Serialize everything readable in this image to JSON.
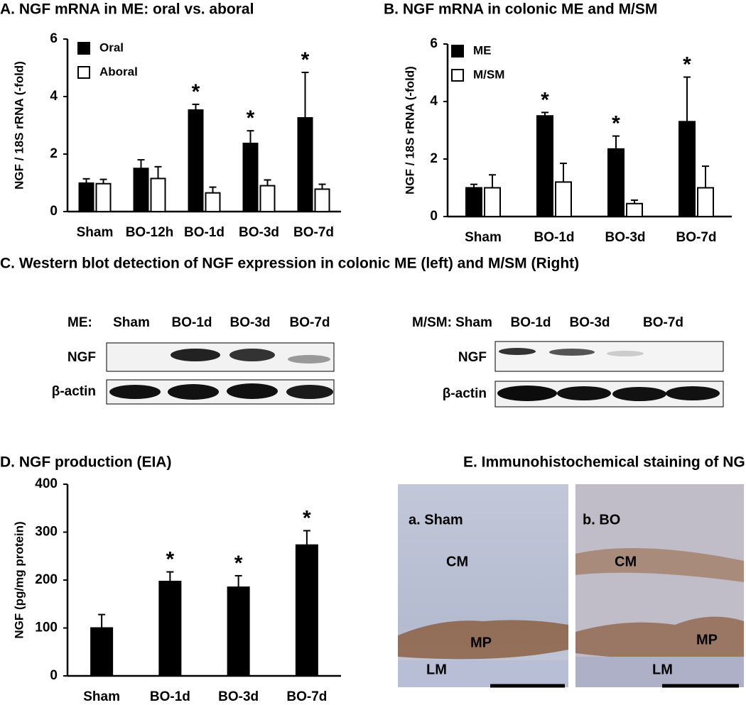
{
  "chart_data": [
    {
      "type": "bar",
      "title": "A. NGF mRNA in ME: oral vs. aboral",
      "ylabel": "NGF / 18S rRNA (-fold)",
      "categories": [
        "Sham",
        "BO-12h",
        "BO-1d",
        "BO-3d",
        "BO-7d"
      ],
      "series": [
        {
          "name": "Oral",
          "color": "#000000",
          "values": [
            0.99,
            1.5,
            3.53,
            2.37,
            3.26
          ],
          "errors": [
            0.15,
            0.3,
            0.2,
            0.44,
            1.58
          ],
          "markers": [
            null,
            null,
            "*",
            "*",
            "*"
          ]
        },
        {
          "name": "Aboral",
          "color": "#ffffff",
          "values": [
            0.97,
            1.15,
            0.65,
            0.9,
            0.78
          ],
          "errors": [
            0.15,
            0.41,
            0.2,
            0.2,
            0.17
          ]
        }
      ],
      "ylim": [
        0,
        6
      ],
      "yticks": [
        0,
        2,
        4,
        6
      ]
    },
    {
      "type": "bar",
      "title": "B. NGF mRNA in colonic ME and M/SM",
      "ylabel": "NGF / 18S rRNA (-fold)",
      "categories": [
        "Sham",
        "BO-1d",
        "BO-3d",
        "BO-7d"
      ],
      "series": [
        {
          "name": "ME",
          "color": "#000000",
          "values": [
            1.0,
            3.5,
            2.35,
            3.3
          ],
          "errors": [
            0.12,
            0.12,
            0.45,
            1.55
          ],
          "markers": [
            null,
            "*",
            "*",
            "*"
          ]
        },
        {
          "name": "M/SM",
          "color": "#ffffff",
          "values": [
            1.0,
            1.2,
            0.45,
            1.0
          ],
          "errors": [
            0.45,
            0.65,
            0.12,
            0.75
          ]
        }
      ],
      "ylim": [
        0,
        6
      ],
      "yticks": [
        0,
        2,
        4,
        6
      ]
    },
    {
      "type": "bar",
      "title": "D. NGF production (EIA)",
      "ylabel": "NGF (pg/mg protein)",
      "categories": [
        "Sham",
        "BO-1d",
        "BO-3d",
        "BO-7d"
      ],
      "values": [
        100,
        197,
        185,
        273
      ],
      "errors": [
        28,
        20,
        24,
        30
      ],
      "markers": [
        null,
        "*",
        "*",
        "*"
      ],
      "color": "#000000",
      "ylim": [
        0,
        400
      ],
      "yticks": [
        0,
        100,
        200,
        300,
        400
      ]
    }
  ],
  "western_blot": {
    "title": "C. Western blot detection of NGF expression in colonic ME (left) and M/SM (Right)",
    "panels": [
      {
        "tissue": "ME:",
        "lanes": [
          "Sham",
          "BO-1d",
          "BO-3d",
          "BO-7d"
        ],
        "rows": [
          "NGF",
          "β-actin"
        ]
      },
      {
        "tissue": "M/SM:",
        "lanes": [
          "Sham",
          "BO-1d",
          "BO-3d",
          "BO-7d"
        ],
        "rows": [
          "NGF",
          "β-actin"
        ]
      }
    ]
  },
  "ihc": {
    "title": "E. Immunohistochemical staining of NGF",
    "images": [
      {
        "label": "a. Sham",
        "regions": [
          "CM",
          "MP",
          "LM"
        ]
      },
      {
        "label": "b. BO",
        "regions": [
          "CM",
          "MP",
          "LM"
        ]
      }
    ]
  }
}
